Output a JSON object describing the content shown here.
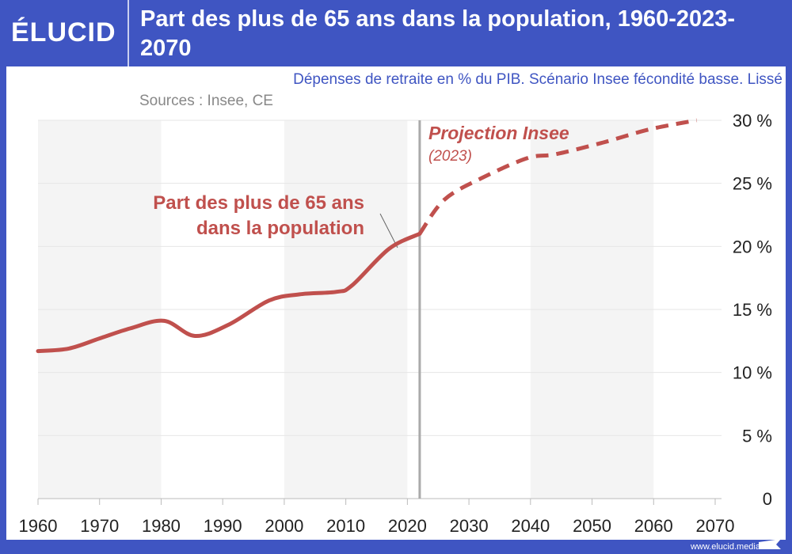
{
  "header": {
    "logo": "ÉLUCID",
    "title": "Part des plus de 65 ans dans la population, 1960-2023-2070",
    "subtitle": "Dépenses de retraite en % du PIB. Scénario Insee fécondité basse. Lissé",
    "sources": "Sources : Insee, CE"
  },
  "footer": {
    "url": "www.elucid.media"
  },
  "colors": {
    "brand": "#3f55c2",
    "series": "#c0504d"
  },
  "chart_data": {
    "type": "line",
    "title": "Part des plus de 65 ans dans la population, 1960-2023-2070",
    "xlim": [
      1960,
      2070
    ],
    "ylim": [
      0,
      30
    ],
    "x_ticks": [
      "1960",
      "1970",
      "1980",
      "1990",
      "2000",
      "2010",
      "2020",
      "2030",
      "2040",
      "2050",
      "2060",
      "2070"
    ],
    "y_ticks": [
      "0",
      "5 %",
      "10 %",
      "15 %",
      "20 %",
      "25 %",
      "30 %"
    ],
    "grid": true,
    "series": [
      {
        "name": "Part des plus de 65 ans dans la population",
        "style": "solid",
        "x": [
          1960,
          1965,
          1970,
          1975,
          1980.5,
          1985.5,
          1991,
          1997.5,
          2002.5,
          2008.5,
          2011,
          2017,
          2022
        ],
        "y": [
          11.7,
          11.9,
          12.7,
          13.5,
          14.1,
          12.9,
          13.8,
          15.7,
          16.2,
          16.4,
          16.9,
          19.8,
          21.0
        ]
      },
      {
        "name": "Projection Insee",
        "style": "dashed",
        "x": [
          2022,
          2026,
          2032,
          2039.5,
          2044,
          2051.5,
          2059.5,
          2067
        ],
        "y": [
          21.0,
          23.7,
          25.4,
          27.0,
          27.3,
          28.2,
          29.3,
          30.0
        ]
      }
    ],
    "annotations": {
      "series_label_1": "Part des plus de 65 ans",
      "series_label_2": "dans la population",
      "projection_label": "Projection Insee",
      "projection_year": "(2023)"
    },
    "projection_start": 2022
  }
}
